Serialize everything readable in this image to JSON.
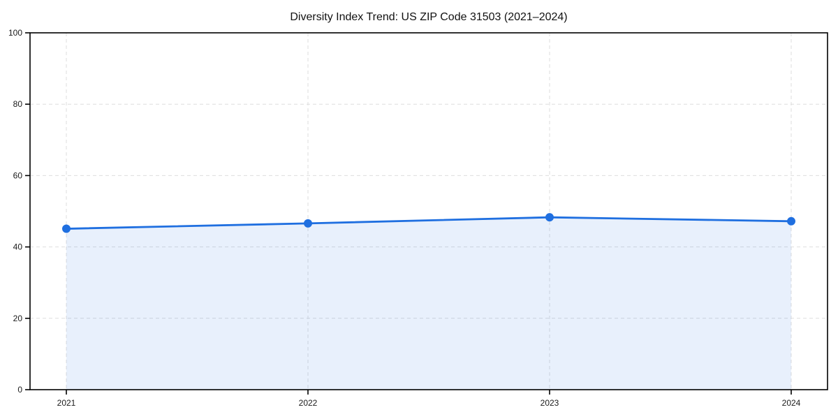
{
  "chart_data": {
    "type": "line",
    "categories": [
      "2021",
      "2022",
      "2023",
      "2024"
    ],
    "values": [
      45.1,
      46.6,
      48.3,
      47.2
    ],
    "title": "Diversity Index Trend: US ZIP Code 31503 (2021–2024)",
    "xlabel": "",
    "ylabel": "",
    "ylim": [
      0,
      100
    ],
    "yticks": [
      0,
      20,
      40,
      60,
      80,
      100
    ],
    "grid": true,
    "legend": "none",
    "area_fill": true,
    "style": {
      "line_color": "#1f6fe0",
      "marker_color": "#1f6fe0",
      "fill_color": "#1f6fe0",
      "fill_opacity": 0.1,
      "grid_color": "#dedede",
      "spine_color": "#000000",
      "text_color": "#1a1a1a",
      "background": "#ffffff"
    }
  }
}
